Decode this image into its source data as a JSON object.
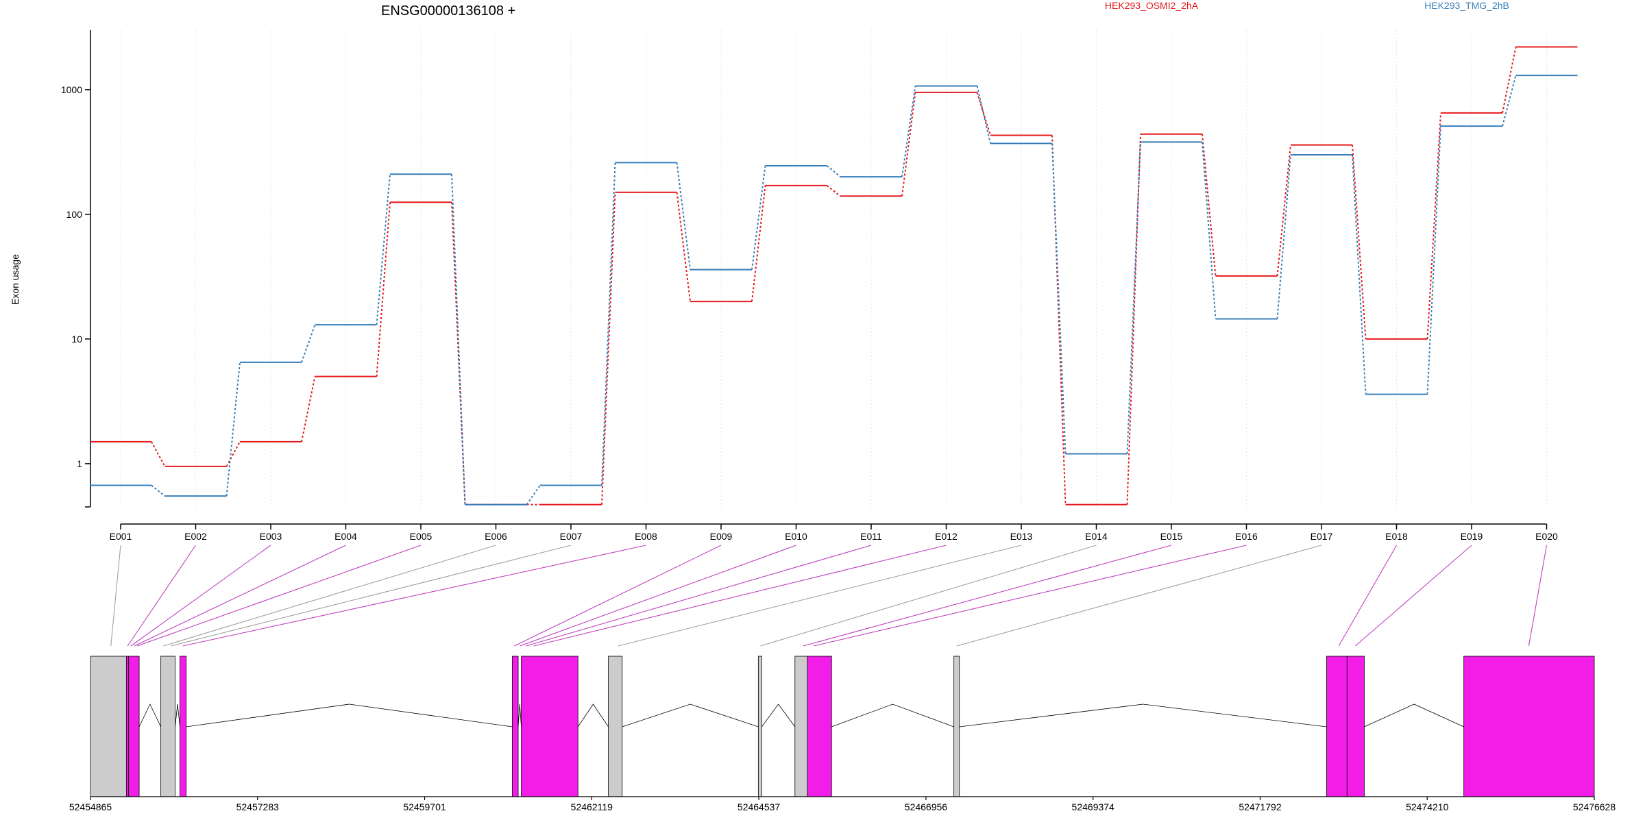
{
  "chart_data": {
    "type": "line",
    "title": "ENSG00000136108 +",
    "ylabel": "Exon usage",
    "xlabel": "",
    "y_scale": "log",
    "ylim": [
      0.45,
      3000
    ],
    "y_ticks": [
      1,
      10,
      100,
      1000
    ],
    "y_tick_labels": [
      "1",
      "10",
      "100",
      "1000"
    ],
    "grid": "vertical dotted lines at each exon",
    "legend": "top-right, colored text labels",
    "categories": [
      "E001",
      "E002",
      "E003",
      "E004",
      "E005",
      "E006",
      "E007",
      "E008",
      "E009",
      "E010",
      "E011",
      "E012",
      "E013",
      "E014",
      "E015",
      "E016",
      "E017",
      "E018",
      "E019",
      "E020"
    ],
    "series": [
      {
        "name": "HEK293_OSMI2_2hA",
        "color": "#e41a1c",
        "values": [
          1.5,
          0.95,
          1.5,
          5.0,
          125,
          0.47,
          0.47,
          150,
          20,
          170,
          140,
          950,
          430,
          0.47,
          440,
          32,
          360,
          10,
          650,
          2200
        ]
      },
      {
        "name": "HEK293_TMG_2hB",
        "color": "#377eb8",
        "values": [
          0.67,
          0.55,
          6.5,
          13,
          210,
          0.47,
          0.67,
          260,
          36,
          245,
          200,
          1070,
          370,
          1.2,
          380,
          14.5,
          300,
          3.6,
          510,
          1300
        ]
      }
    ],
    "gene_model": {
      "start": 52454865,
      "end": 52476628,
      "ticks": [
        52454865,
        52457283,
        52459701,
        52462119,
        52464537,
        52466956,
        52469374,
        52471792,
        52474210,
        52476628
      ],
      "tick_labels": [
        "52454865",
        "52457283",
        "52459701",
        "52462119",
        "52464537",
        "52466956",
        "52469374",
        "52471792",
        "52474210",
        "52476628"
      ],
      "highlight_color": "#f21ee8",
      "plain_color": "#cccccc",
      "exon_states": [
        "grey",
        "pink",
        "pink",
        "pink",
        "pink",
        "grey",
        "grey",
        "pink",
        "pink",
        "pink",
        "pink",
        "pink",
        "grey",
        "grey",
        "pink",
        "pink",
        "grey",
        "pink",
        "pink",
        "pink"
      ]
    }
  }
}
